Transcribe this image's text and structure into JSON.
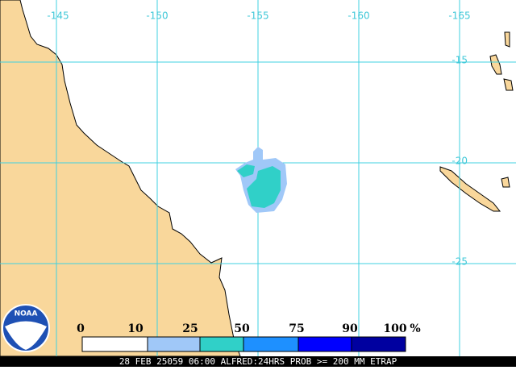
{
  "map": {
    "lon_labels": [
      "-145",
      "-150",
      "-155",
      "-160",
      "-165"
    ],
    "lat_labels": [
      "-15",
      "-20",
      "-25"
    ],
    "legend": {
      "labels": [
        "0",
        "10",
        "25",
        "50",
        "75",
        "90",
        "100"
      ],
      "unit": "%",
      "colors": [
        "#ffffff",
        "#a0c8f8",
        "#30d0c8",
        "#1e90ff",
        "#0000ff",
        "#0000a0"
      ]
    },
    "logo": "NOAA",
    "caption": "28 FEB 25059 06:00 ALFRED:24HRS PROB >= 200 MM ETRAP"
  }
}
